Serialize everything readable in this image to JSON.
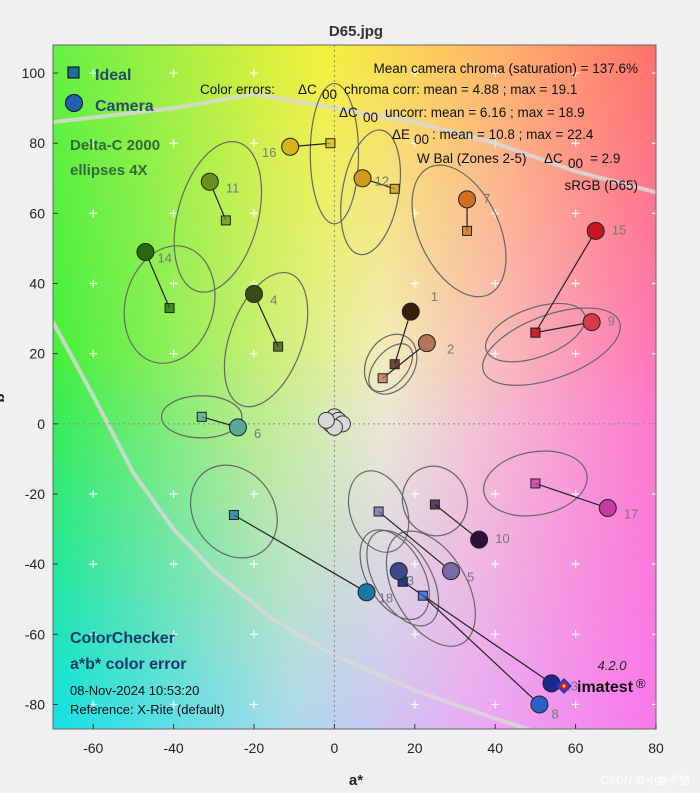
{
  "title": "D65.jpg",
  "legend": {
    "ideal": "Ideal",
    "camera": "Camera"
  },
  "ellipse_label": [
    "Delta-C 2000",
    "ellipses 4X"
  ],
  "stats": {
    "line1": "Mean camera chroma (saturation) = 137.6%",
    "line2_prefix": "Color errors:",
    "line2_main": "chroma corr:  mean = 4.88 ;  max = 19.1",
    "line3_main": "uncorr:  mean = 6.16 ;  max = 18.9",
    "line4_main": ":  mean = 10.8 ;  max = 22.4",
    "line5_prefix": "W Bal (Zones 2-5)",
    "line5_suffix": "= 2.9",
    "line6": "sRGB (D65)",
    "delta_c": "ΔC",
    "delta_e": "ΔE",
    "sub": "00"
  },
  "footer": {
    "title1": "ColorChecker",
    "title2": "a*b* color error",
    "date": "08-Nov-2024  10:53:20",
    "reference": "Reference: X-Rite (default)"
  },
  "brand": {
    "version": "4.2.0",
    "name": "imatest",
    "reg": "®"
  },
  "watermark": "CSDN @小鱼不错",
  "colors": {
    "ideal_marker": "#1a6fa0",
    "camera_marker": "#1f60b0",
    "text_green": "#2f6b3a",
    "text_navy": "#1a3a6a"
  },
  "chart_data": {
    "type": "scatter",
    "title": "D65.jpg",
    "xlabel": "a*",
    "ylabel": "b*",
    "xlim": [
      -70,
      80
    ],
    "ylim": [
      -87,
      108
    ],
    "xticks": [
      -60,
      -40,
      -20,
      0,
      20,
      40,
      60,
      80
    ],
    "yticks": [
      -80,
      -60,
      -40,
      -20,
      0,
      20,
      40,
      60,
      80,
      100
    ],
    "patches": [
      {
        "id": 1,
        "ideal": [
          15,
          17
        ],
        "camera": [
          19,
          32
        ],
        "ellipse": [
          14,
          17,
          6,
          9,
          30
        ],
        "color": "#3a1e0c"
      },
      {
        "id": 2,
        "ideal": [
          12,
          13
        ],
        "camera": [
          23,
          23
        ],
        "ellipse": [
          14,
          16,
          4,
          8,
          40
        ],
        "color": "#b5735c"
      },
      {
        "id": 3,
        "ideal": [
          17,
          -45
        ],
        "camera": [
          16,
          -42
        ],
        "ellipse": [
          17,
          -44,
          7,
          15,
          -30
        ],
        "color": "#3a4a8a"
      },
      {
        "id": 4,
        "ideal": [
          -14,
          22
        ],
        "camera": [
          -20,
          37
        ],
        "ellipse": [
          -17,
          24,
          9,
          20,
          20
        ],
        "color": "#3a4a18"
      },
      {
        "id": 5,
        "ideal": [
          11,
          -25
        ],
        "camera": [
          29,
          -42
        ],
        "ellipse": [
          11,
          -25,
          7,
          12,
          -20
        ],
        "color": "#7a6aaa"
      },
      {
        "id": 6,
        "ideal": [
          -33,
          2
        ],
        "camera": [
          -24,
          -1
        ],
        "ellipse": [
          -33,
          2,
          10,
          6,
          0
        ],
        "color": "#5aa898"
      },
      {
        "id": 7,
        "ideal": [
          33,
          55
        ],
        "camera": [
          33,
          64
        ],
        "ellipse": [
          31,
          55,
          10,
          20,
          -25
        ],
        "color": "#d0701e"
      },
      {
        "id": 8,
        "ideal": [
          22,
          -49
        ],
        "camera": [
          51,
          -80
        ],
        "ellipse": [
          24,
          -47,
          9,
          18,
          -30
        ],
        "color": "#2a60c8"
      },
      {
        "id": 9,
        "ideal": [
          50,
          26
        ],
        "camera": [
          64,
          29
        ],
        "ellipse": [
          54,
          22,
          18,
          9,
          -20
        ],
        "color": "#d83a4a"
      },
      {
        "id": 10,
        "ideal": [
          25,
          -23
        ],
        "camera": [
          36,
          -33
        ],
        "ellipse": [
          25,
          -22,
          8,
          10,
          -20
        ],
        "color": "#300e3a"
      },
      {
        "id": 11,
        "ideal": [
          -27,
          58
        ],
        "camera": [
          -31,
          69
        ],
        "ellipse": [
          -29,
          59,
          10,
          22,
          15
        ],
        "color": "#6a8f22"
      },
      {
        "id": 12,
        "ideal": [
          15,
          67
        ],
        "camera": [
          7,
          70
        ],
        "ellipse": [
          9,
          66,
          7,
          18,
          10
        ],
        "color": "#d09a1a"
      },
      {
        "id": 13,
        "ideal": [
          17,
          -45
        ],
        "camera": [
          54,
          -74
        ],
        "ellipse": [
          15,
          -43,
          7,
          14,
          -30
        ],
        "color": "#1a2a8a"
      },
      {
        "id": 14,
        "ideal": [
          -41,
          33
        ],
        "camera": [
          -47,
          49
        ],
        "ellipse": [
          -41,
          34,
          11,
          17,
          15
        ],
        "color": "#2a6a0e"
      },
      {
        "id": 15,
        "ideal": [
          50,
          26
        ],
        "camera": [
          65,
          55
        ],
        "ellipse": [
          50,
          26,
          13,
          7,
          -20
        ],
        "color": "#c8141e"
      },
      {
        "id": 16,
        "ideal": [
          -1,
          80
        ],
        "camera": [
          -11,
          79
        ],
        "ellipse": [
          0,
          77,
          6,
          20,
          0
        ],
        "color": "#d8b41a"
      },
      {
        "id": 17,
        "ideal": [
          50,
          -17
        ],
        "camera": [
          68,
          -24
        ],
        "ellipse": [
          50,
          -17,
          13,
          9,
          -10
        ],
        "color": "#c83aa0"
      },
      {
        "id": 18,
        "ideal": [
          -25,
          -26
        ],
        "camera": [
          8,
          -48
        ],
        "ellipse": [
          -25,
          -25,
          10,
          14,
          -35
        ],
        "color": "#1a78a8"
      }
    ],
    "labels_offset": {
      "1": [
        5,
        3
      ],
      "2": [
        5,
        -3
      ],
      "3": [
        2,
        -4
      ],
      "4": [
        4,
        -3
      ],
      "5": [
        4,
        -3
      ],
      "6": [
        4,
        -3
      ],
      "7": [
        4,
        -1
      ],
      "8": [
        3,
        -4
      ],
      "9": [
        4,
        -1
      ],
      "10": [
        4,
        -1
      ],
      "11": [
        4,
        -3
      ],
      "12": [
        3,
        -2
      ],
      "13": [
        3,
        -2
      ],
      "14": [
        3,
        -3
      ],
      "15": [
        4,
        -1
      ],
      "16": [
        -7,
        -3
      ],
      "17": [
        4,
        -3
      ],
      "18": [
        3,
        -3
      ]
    },
    "neutral": [
      [
        0,
        2
      ],
      [
        -1,
        0
      ],
      [
        1,
        1
      ],
      [
        2,
        0
      ],
      [
        0,
        -1
      ],
      [
        -2,
        1
      ]
    ],
    "gamut": {
      "top": [
        [
          -70,
          86
        ],
        [
          -40,
          90
        ],
        [
          -20,
          94
        ],
        [
          0,
          90
        ],
        [
          20,
          86
        ],
        [
          40,
          80
        ],
        [
          60,
          72
        ],
        [
          80,
          66
        ]
      ],
      "left": [
        [
          -70,
          29
        ],
        [
          -60,
          8
        ],
        [
          -50,
          -14
        ],
        [
          -40,
          -30
        ],
        [
          -30,
          -42
        ],
        [
          -15,
          -56
        ],
        [
          0,
          -66
        ],
        [
          20,
          -76
        ],
        [
          40,
          -84
        ],
        [
          70,
          -95
        ]
      ]
    }
  }
}
